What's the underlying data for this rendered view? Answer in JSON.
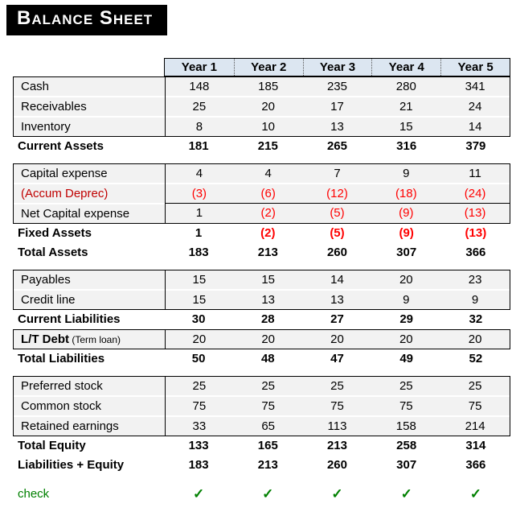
{
  "title": "Balance Sheet",
  "colors": {
    "header_bg": "#dce6f1",
    "band_bg": "#f2f2f2",
    "border": "#000000",
    "red": "#ff0000",
    "dark_red": "#c00000",
    "green": "#008000",
    "title_bg": "#000000",
    "title_fg": "#ffffff"
  },
  "table": {
    "columns": [
      "Year 1",
      "Year 2",
      "Year 3",
      "Year 4",
      "Year 5"
    ],
    "sections": [
      {
        "type": "box",
        "name": "current-assets-detail",
        "rows": [
          {
            "label": "Cash",
            "values": [
              "148",
              "185",
              "235",
              "280",
              "341"
            ]
          },
          {
            "label": "Receivables",
            "values": [
              "25",
              "20",
              "17",
              "21",
              "24"
            ]
          },
          {
            "label": "Inventory",
            "values": [
              "8",
              "10",
              "13",
              "15",
              "14"
            ]
          }
        ]
      },
      {
        "type": "rows",
        "rows": [
          {
            "label": "Current Assets",
            "bold": true,
            "values": [
              "181",
              "215",
              "265",
              "316",
              "379"
            ]
          }
        ]
      },
      {
        "type": "gap"
      },
      {
        "type": "box",
        "name": "fixed-assets-detail",
        "rows": [
          {
            "label": "Capital expense",
            "values": [
              "4",
              "4",
              "7",
              "9",
              "11"
            ]
          },
          {
            "label": "(Accum Deprec)",
            "label_color": "dark_red",
            "divider_below": true,
            "values": [
              "(3)",
              "(6)",
              "(12)",
              "(18)",
              "(24)"
            ],
            "value_colors": [
              "red",
              "red",
              "red",
              "red",
              "red"
            ]
          },
          {
            "label": "Net Capital expense",
            "values": [
              "1",
              "(2)",
              "(5)",
              "(9)",
              "(13)"
            ],
            "value_colors": [
              null,
              "red",
              "red",
              "red",
              "red"
            ]
          }
        ]
      },
      {
        "type": "rows",
        "rows": [
          {
            "label": "Fixed Assets",
            "bold": true,
            "values": [
              "1",
              "(2)",
              "(5)",
              "(9)",
              "(13)"
            ],
            "value_colors": [
              null,
              "red",
              "red",
              "red",
              "red"
            ]
          },
          {
            "label": "Total Assets",
            "bold": true,
            "values": [
              "183",
              "213",
              "260",
              "307",
              "366"
            ]
          }
        ]
      },
      {
        "type": "gap"
      },
      {
        "type": "box",
        "name": "current-liabilities-detail",
        "rows": [
          {
            "label": "Payables",
            "values": [
              "15",
              "15",
              "14",
              "20",
              "23"
            ]
          },
          {
            "label": "Credit line",
            "values": [
              "15",
              "13",
              "13",
              "9",
              "9"
            ]
          }
        ]
      },
      {
        "type": "rows",
        "rows": [
          {
            "label": "Current Liabilities",
            "bold": true,
            "values": [
              "30",
              "28",
              "27",
              "29",
              "32"
            ]
          }
        ]
      },
      {
        "type": "box",
        "name": "lt-debt",
        "rows": [
          {
            "label": "L/T Debt",
            "suffix": " (Term loan)",
            "bold_label": true,
            "values": [
              "20",
              "20",
              "20",
              "20",
              "20"
            ]
          }
        ]
      },
      {
        "type": "rows",
        "rows": [
          {
            "label": "Total Liabilities",
            "bold": true,
            "values": [
              "50",
              "48",
              "47",
              "49",
              "52"
            ]
          }
        ]
      },
      {
        "type": "gap"
      },
      {
        "type": "box",
        "name": "equity-detail",
        "rows": [
          {
            "label": "Preferred stock",
            "values": [
              "25",
              "25",
              "25",
              "25",
              "25"
            ]
          },
          {
            "label": "Common stock",
            "values": [
              "75",
              "75",
              "75",
              "75",
              "75"
            ]
          },
          {
            "label": "Retained earnings",
            "values": [
              "33",
              "65",
              "113",
              "158",
              "214"
            ]
          }
        ]
      },
      {
        "type": "rows",
        "rows": [
          {
            "label": "Total Equity",
            "bold": true,
            "values": [
              "133",
              "165",
              "213",
              "258",
              "314"
            ]
          },
          {
            "label": "Liabilities + Equity",
            "bold": true,
            "values": [
              "183",
              "213",
              "260",
              "307",
              "366"
            ]
          }
        ]
      },
      {
        "type": "check",
        "label": "check",
        "marks": [
          "✓",
          "✓",
          "✓",
          "✓",
          "✓"
        ]
      }
    ]
  }
}
